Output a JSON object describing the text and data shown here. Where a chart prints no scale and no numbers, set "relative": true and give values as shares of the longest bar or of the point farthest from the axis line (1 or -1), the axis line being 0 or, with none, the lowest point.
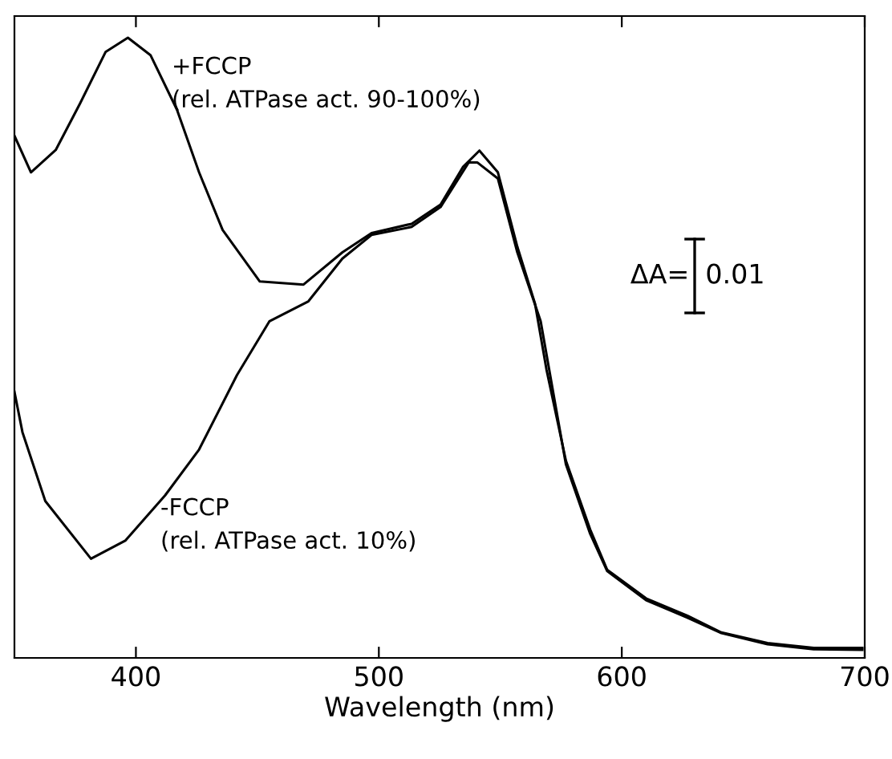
{
  "chart_data": {
    "type": "line",
    "xlabel": "Wavelength (nm)",
    "relative": true,
    "xlim": [
      350,
      700
    ],
    "xticks": [
      400,
      500,
      600,
      700
    ],
    "tick_labels": "x",
    "grid": false,
    "marker": "none",
    "line_style": "solid",
    "annotations": [
      "ΔA=",
      "0.01"
    ],
    "series": [
      {
        "name": "+FCCP\n(rel. ATPase act. 90-100%)",
        "color": "#000000",
        "x": [
          350,
          356.8,
          367,
          377,
          387.5,
          396.7,
          406,
          416.9,
          426,
          435.7,
          451,
          469,
          485,
          497,
          513.5,
          525.4,
          534.7,
          541.4,
          549,
          557,
          564.3,
          569,
          577,
          587,
          594,
          610,
          627,
          641,
          660,
          679,
          699
        ],
        "values": [
          0.842,
          0.783,
          0.819,
          0.894,
          0.977,
          1,
          0.972,
          0.884,
          0.783,
          0.69,
          0.607,
          0.602,
          0.654,
          0.685,
          0.7,
          0.731,
          0.792,
          0.818,
          0.783,
          0.663,
          0.571,
          0.465,
          0.318,
          0.207,
          0.142,
          0.096,
          0.068,
          0.041,
          0.024,
          0.016,
          0.016
        ]
      },
      {
        "name": "-FCCP\n(rel. ATPase act. 10%)",
        "color": "#000000",
        "x": [
          350,
          353.3,
          362.7,
          381.5,
          395.6,
          412,
          426,
          441.6,
          455,
          471,
          485,
          497,
          513.5,
          525.4,
          537,
          540.5,
          549,
          557,
          566.6,
          577,
          587,
          594,
          610,
          627,
          641,
          660,
          679,
          699
        ],
        "values": [
          0.429,
          0.364,
          0.253,
          0.16,
          0.189,
          0.262,
          0.336,
          0.456,
          0.543,
          0.575,
          0.644,
          0.682,
          0.695,
          0.727,
          0.799,
          0.799,
          0.773,
          0.654,
          0.543,
          0.312,
          0.2,
          0.14,
          0.093,
          0.065,
          0.04,
          0.022,
          0.014,
          0.013
        ]
      }
    ]
  }
}
